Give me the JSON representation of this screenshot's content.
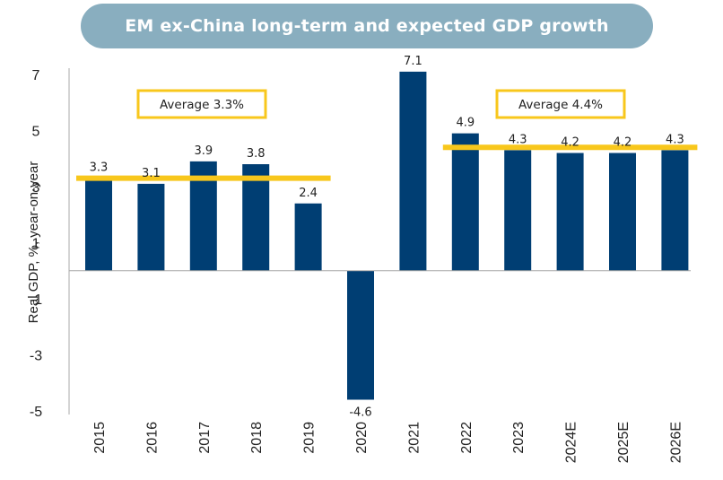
{
  "title": "EM ex-China long-term and expected GDP growth",
  "colors": {
    "bar": "#003e73",
    "average": "#f8c71c",
    "title_bg": "#89aebf",
    "axis": "#a8a8a8"
  },
  "chart_data": {
    "type": "bar",
    "title": "EM ex-China long-term and expected GDP growth",
    "xlabel": "",
    "ylabel": "Real GDP, %,  year-on-year",
    "ylim": [
      -5,
      7
    ],
    "yticks": [
      7,
      5,
      3,
      1,
      -1,
      -3,
      -5
    ],
    "ytick_labels": [
      "7",
      "5",
      "3",
      "1",
      "-1",
      "-3",
      "-5"
    ],
    "categories": [
      "2015",
      "2016",
      "2017",
      "2018",
      "2019",
      "2020",
      "2021",
      "2022",
      "2023",
      "2024E",
      "2025E",
      "2026E"
    ],
    "values": [
      3.3,
      3.1,
      3.9,
      3.8,
      2.4,
      -4.6,
      7.1,
      4.9,
      4.3,
      4.2,
      4.2,
      4.3
    ],
    "data_labels": [
      "3.3",
      "3.1",
      "3.9",
      "3.8",
      "2.4",
      "-4.6",
      "7.1",
      "4.9",
      "4.3",
      "4.2",
      "4.2",
      "4.3"
    ],
    "grid": false,
    "annotations": [
      {
        "label": "Average 3.3%",
        "value": 3.3,
        "from": "2015",
        "to": "2019"
      },
      {
        "label": "Average 4.4%",
        "value": 4.4,
        "from": "2022",
        "to": "2026E"
      }
    ]
  }
}
